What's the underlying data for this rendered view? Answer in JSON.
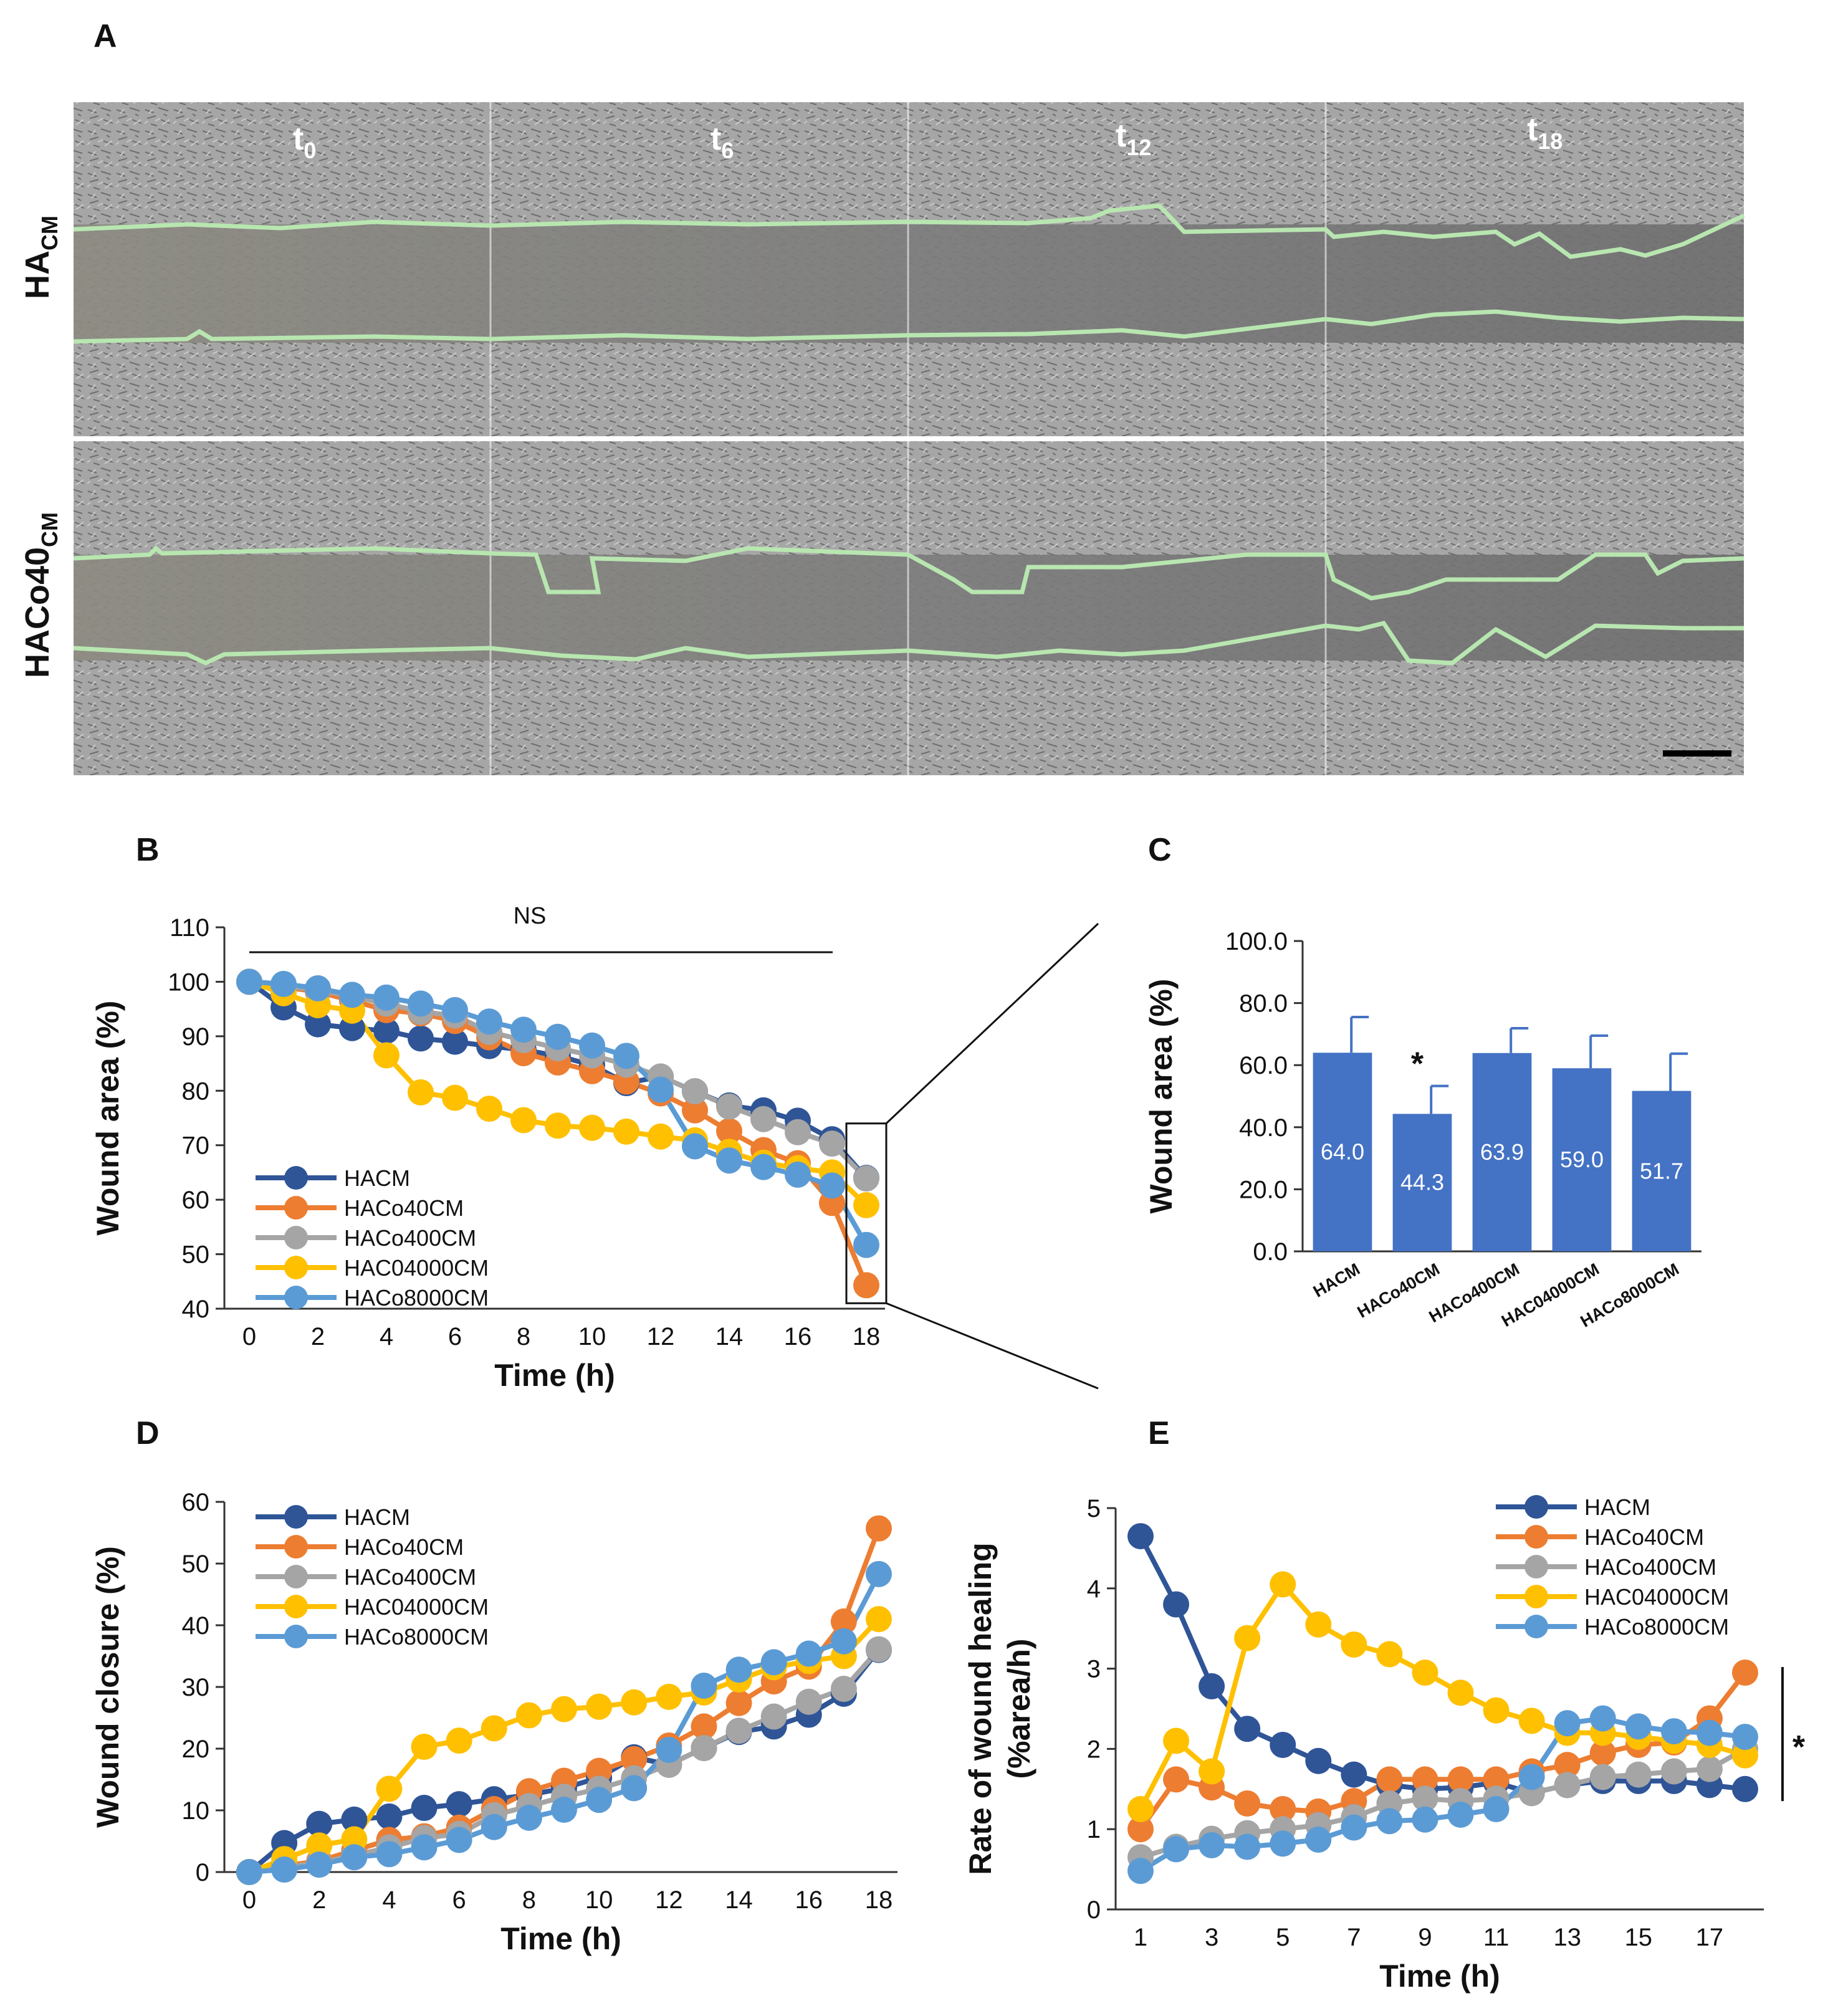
{
  "panel_a": {
    "letter": "A",
    "time_labels": [
      {
        "base": "t",
        "sub": "0"
      },
      {
        "base": "t",
        "sub": "6"
      },
      {
        "base": "t",
        "sub": "12"
      },
      {
        "base": "t",
        "sub": "18"
      }
    ],
    "row_labels": [
      {
        "base": "HA",
        "sub": "CM"
      },
      {
        "base": "HACo40",
        "sub": "CM"
      }
    ],
    "colors": {
      "wound_edge": "#b8e6b0",
      "scale_bar": "#000000"
    }
  },
  "series_colors": {
    "HACM": "#2f5597",
    "HACo40CM": "#ed7d31",
    "HACo400CM": "#a5a5a5",
    "HAC04000CM": "#ffc000",
    "HACo8000CM": "#5b9bd5"
  },
  "chart_data": [
    {
      "panel": "B",
      "type": "line",
      "xlabel": "Time (h)",
      "ylabel": "Wound area (%)",
      "xlim": [
        0,
        18
      ],
      "ylim": [
        40,
        110
      ],
      "xticks": [
        0,
        2,
        4,
        6,
        8,
        10,
        12,
        14,
        16,
        18
      ],
      "yticks": [
        40,
        50,
        60,
        70,
        80,
        90,
        100,
        110
      ],
      "annotation": "NS",
      "x": [
        0,
        1,
        2,
        3,
        4,
        5,
        6,
        7,
        8,
        9,
        10,
        11,
        12,
        13,
        14,
        15,
        16,
        17,
        18
      ],
      "series": [
        {
          "name": "HACM",
          "values": [
            100,
            95.3,
            92.2,
            91.5,
            91.0,
            89.6,
            89.0,
            88.2,
            87.5,
            86.4,
            84.7,
            81.4,
            82.6,
            79.9,
            77.3,
            76.4,
            74.5,
            71.1,
            64.0
          ]
        },
        {
          "name": "HACo40CM",
          "values": [
            100,
            99.0,
            98.2,
            96.5,
            94.8,
            94.2,
            92.8,
            89.8,
            86.9,
            85.2,
            83.6,
            81.7,
            79.5,
            76.4,
            72.6,
            69.1,
            66.7,
            59.4,
            44.3
          ]
        },
        {
          "name": "HACo400CM",
          "values": [
            100,
            99.2,
            98.5,
            97.3,
            96.0,
            94.5,
            93.8,
            90.8,
            89.3,
            87.8,
            86.5,
            84.8,
            82.6,
            79.9,
            77.1,
            74.8,
            72.4,
            70.3,
            63.9
          ]
        },
        {
          "name": "HAC04000CM",
          "values": [
            100,
            97.9,
            95.7,
            94.7,
            86.5,
            79.7,
            78.7,
            76.7,
            74.6,
            73.6,
            73.2,
            72.5,
            71.6,
            70.9,
            68.8,
            66.8,
            65.8,
            65.0,
            59.0
          ]
        },
        {
          "name": "HACo8000CM",
          "values": [
            100,
            99.6,
            98.8,
            97.6,
            97.1,
            96.0,
            94.8,
            92.7,
            91.2,
            89.9,
            88.3,
            86.4,
            80.2,
            69.8,
            67.2,
            66.0,
            64.6,
            62.6,
            51.7
          ]
        }
      ]
    },
    {
      "panel": "C",
      "type": "bar",
      "ylabel": "Wound area (%)",
      "ylim": [
        0,
        100
      ],
      "yticks": [
        "0.0",
        "20.0",
        "40.0",
        "60.0",
        "80.0",
        "100.0"
      ],
      "categories": [
        "HACM",
        "HACo40CM",
        "HACo400CM",
        "HAC04000CM",
        "HACo8000CM"
      ],
      "values": [
        64.0,
        44.3,
        63.9,
        59.0,
        51.7
      ],
      "value_labels": [
        "64.0",
        "44.3",
        "63.9",
        "59.0",
        "51.7"
      ],
      "errors": [
        11.5,
        9.0,
        8.0,
        10.5,
        12.0
      ],
      "significance": "*",
      "bar_color": "#4472c4"
    },
    {
      "panel": "D",
      "type": "line",
      "xlabel": "Time (h)",
      "ylabel": "Wound closure (%)",
      "xlim": [
        0,
        18
      ],
      "ylim": [
        0,
        60
      ],
      "xticks": [
        0,
        2,
        4,
        6,
        8,
        10,
        12,
        14,
        16,
        18
      ],
      "yticks": [
        0,
        10,
        20,
        30,
        40,
        50,
        60
      ],
      "x": [
        0,
        1,
        2,
        3,
        4,
        5,
        6,
        7,
        8,
        9,
        10,
        11,
        12,
        13,
        14,
        15,
        16,
        17,
        18
      ],
      "series": [
        {
          "name": "HACM",
          "values": [
            0,
            4.7,
            7.8,
            8.5,
            9.0,
            10.4,
            11.0,
            11.8,
            12.5,
            13.6,
            15.3,
            18.6,
            17.4,
            20.1,
            22.7,
            23.6,
            25.5,
            28.9,
            36.0
          ]
        },
        {
          "name": "HACo40CM",
          "values": [
            0,
            1.0,
            1.8,
            3.5,
            5.2,
            5.8,
            7.2,
            10.2,
            13.1,
            14.8,
            16.4,
            18.3,
            20.5,
            23.6,
            27.4,
            30.9,
            33.3,
            40.6,
            55.7
          ]
        },
        {
          "name": "HACo400CM",
          "values": [
            0,
            0.8,
            1.5,
            2.7,
            4.0,
            5.5,
            6.2,
            9.2,
            10.7,
            12.2,
            13.5,
            15.2,
            17.4,
            20.1,
            22.9,
            25.2,
            27.6,
            29.7,
            36.1
          ]
        },
        {
          "name": "HAC04000CM",
          "values": [
            0,
            2.1,
            4.3,
            5.3,
            13.5,
            20.3,
            21.3,
            23.3,
            25.4,
            26.4,
            26.8,
            27.5,
            28.4,
            29.1,
            31.2,
            33.2,
            34.2,
            35.0,
            41.0
          ]
        },
        {
          "name": "HACo8000CM",
          "values": [
            0,
            0.4,
            1.2,
            2.4,
            2.9,
            4.0,
            5.2,
            7.3,
            8.8,
            10.1,
            11.7,
            13.6,
            19.8,
            30.2,
            32.8,
            34.0,
            35.4,
            37.4,
            48.3
          ]
        }
      ]
    },
    {
      "panel": "E",
      "type": "line",
      "xlabel": "Time (h)",
      "ylabel_line1": "Rate of wound healing",
      "ylabel_line2": "(%area/h)",
      "xlim": [
        1,
        18
      ],
      "ylim": [
        0,
        5
      ],
      "xticks": [
        1,
        3,
        5,
        7,
        9,
        11,
        13,
        15,
        17
      ],
      "yticks": [
        0,
        1,
        2,
        3,
        4,
        5
      ],
      "significance": "*",
      "x": [
        1,
        2,
        3,
        4,
        5,
        6,
        7,
        8,
        9,
        10,
        11,
        12,
        13,
        14,
        15,
        16,
        17,
        18
      ],
      "series": [
        {
          "name": "HACM",
          "values": [
            4.65,
            3.8,
            2.78,
            2.25,
            2.05,
            1.85,
            1.68,
            1.55,
            1.5,
            1.52,
            1.58,
            1.45,
            1.55,
            1.6,
            1.6,
            1.6,
            1.55,
            1.5
          ]
        },
        {
          "name": "HACo40CM",
          "values": [
            1.0,
            1.62,
            1.52,
            1.32,
            1.25,
            1.22,
            1.35,
            1.62,
            1.62,
            1.62,
            1.62,
            1.72,
            1.8,
            1.95,
            2.05,
            2.08,
            2.38,
            2.95
          ]
        },
        {
          "name": "HACo400CM",
          "values": [
            0.65,
            0.78,
            0.88,
            0.95,
            1.0,
            1.05,
            1.15,
            1.32,
            1.38,
            1.35,
            1.38,
            1.45,
            1.55,
            1.65,
            1.68,
            1.72,
            1.75,
            2.0
          ]
        },
        {
          "name": "HAC04000CM",
          "values": [
            1.25,
            2.1,
            1.72,
            3.38,
            4.05,
            3.55,
            3.3,
            3.18,
            2.95,
            2.7,
            2.48,
            2.35,
            2.2,
            2.2,
            2.15,
            2.1,
            2.05,
            1.92
          ]
        },
        {
          "name": "HACo8000CM",
          "values": [
            0.48,
            0.75,
            0.8,
            0.78,
            0.82,
            0.87,
            1.02,
            1.1,
            1.12,
            1.18,
            1.25,
            1.65,
            2.32,
            2.38,
            2.28,
            2.22,
            2.2,
            2.15
          ]
        }
      ]
    }
  ]
}
